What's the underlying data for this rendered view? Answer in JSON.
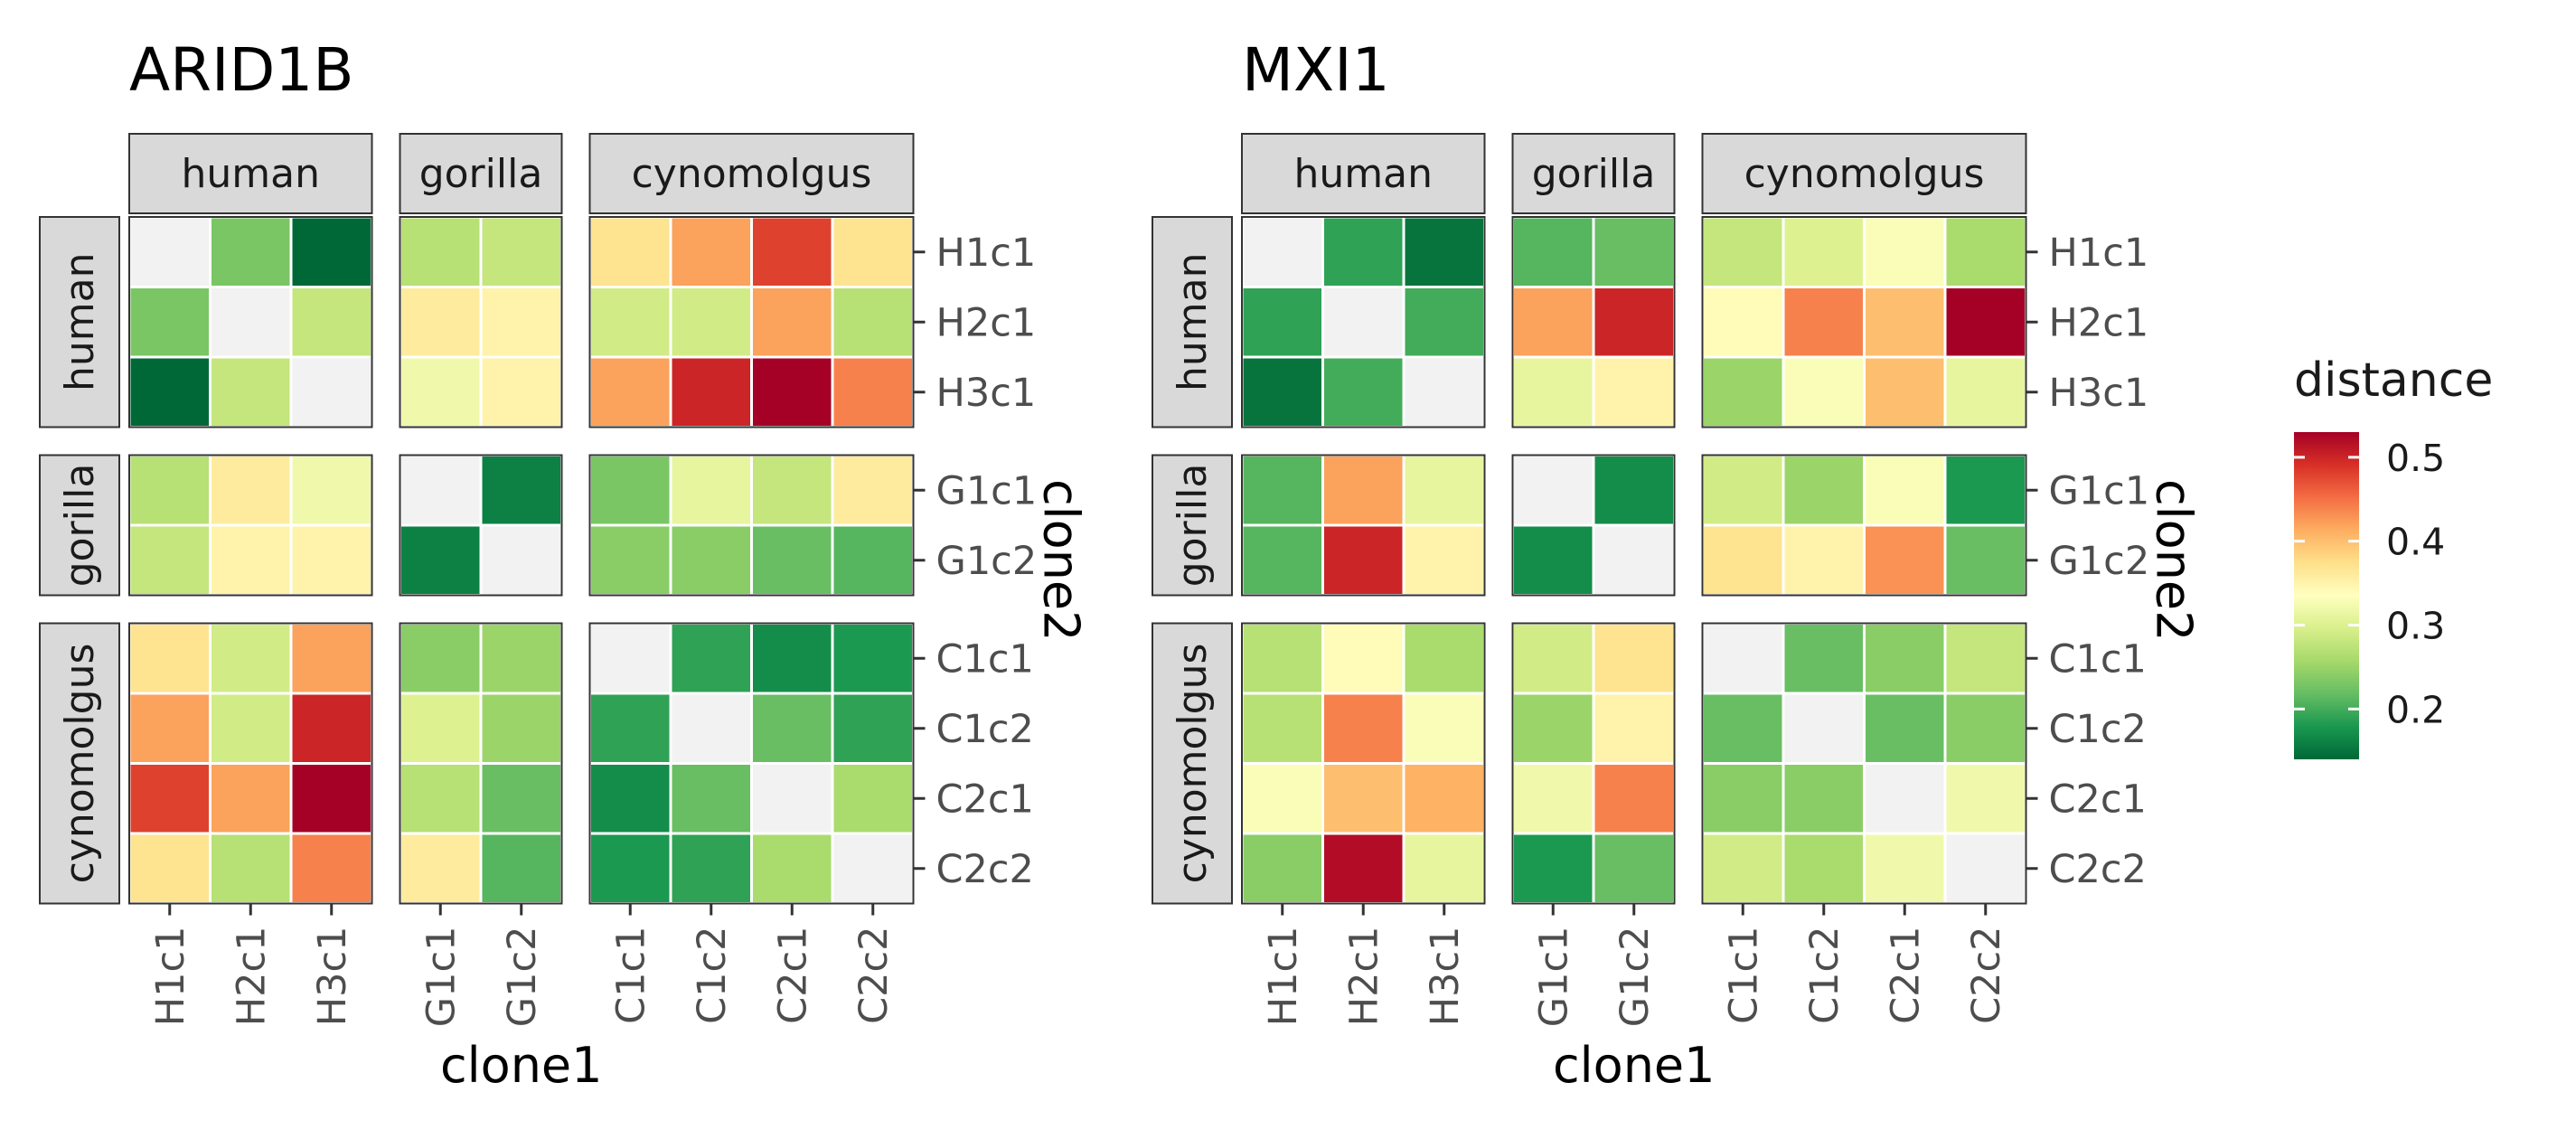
{
  "legend": {
    "title": "distance",
    "ticks": [
      "0.2",
      "0.3",
      "0.4",
      "0.5"
    ],
    "colors": [
      "#006837",
      "#1a9850",
      "#66bd63",
      "#a6d96a",
      "#d9ef8b",
      "#ffffbf",
      "#fee08b",
      "#fdae61",
      "#f46d43",
      "#d73027",
      "#a50026"
    ]
  },
  "chart_data": [
    {
      "type": "heatmap",
      "title": "ARID1B",
      "xlabel": "clone1",
      "ylabel": "clone2",
      "groups": [
        {
          "name": "human",
          "clones": [
            "H1c1",
            "H2c1",
            "H3c1"
          ]
        },
        {
          "name": "gorilla",
          "clones": [
            "G1c1",
            "G1c2"
          ]
        },
        {
          "name": "cynomolgus",
          "clones": [
            "C1c1",
            "C1c2",
            "C2c1",
            "C2c2"
          ]
        }
      ],
      "x": [
        "H1c1",
        "H2c1",
        "H3c1",
        "G1c1",
        "G1c2",
        "C1c1",
        "C1c2",
        "C2c1",
        "C2c2"
      ],
      "y": [
        "H1c1",
        "H2c1",
        "H3c1",
        "G1c1",
        "G1c2",
        "C1c1",
        "C1c2",
        "C2c1",
        "C2c2"
      ],
      "diagonal": "not shown",
      "values": [
        [
          null,
          0.23,
          0.14,
          0.27,
          0.28,
          0.37,
          0.42,
          0.48,
          0.37
        ],
        [
          0.23,
          null,
          0.28,
          0.36,
          0.35,
          0.29,
          0.29,
          0.42,
          0.27
        ],
        [
          0.14,
          0.28,
          null,
          0.32,
          0.35,
          0.42,
          0.5,
          0.53,
          0.44
        ],
        [
          0.27,
          0.36,
          0.32,
          null,
          0.16,
          0.23,
          0.31,
          0.28,
          0.36
        ],
        [
          0.28,
          0.35,
          0.35,
          0.16,
          null,
          0.24,
          0.24,
          0.22,
          0.21
        ],
        [
          0.37,
          0.29,
          0.42,
          0.24,
          0.25,
          null,
          0.19,
          0.17,
          0.18
        ],
        [
          0.42,
          0.29,
          0.5,
          0.3,
          0.25,
          0.19,
          null,
          0.22,
          0.19
        ],
        [
          0.48,
          0.42,
          0.53,
          0.27,
          0.22,
          0.17,
          0.22,
          null,
          0.26
        ],
        [
          0.37,
          0.27,
          0.44,
          0.36,
          0.21,
          0.18,
          0.19,
          0.26,
          null
        ]
      ]
    },
    {
      "type": "heatmap",
      "title": "MXI1",
      "xlabel": "clone1",
      "ylabel": "clone2",
      "groups": [
        {
          "name": "human",
          "clones": [
            "H1c1",
            "H2c1",
            "H3c1"
          ]
        },
        {
          "name": "gorilla",
          "clones": [
            "G1c1",
            "G1c2"
          ]
        },
        {
          "name": "cynomolgus",
          "clones": [
            "C1c1",
            "C1c2",
            "C2c1",
            "C2c2"
          ]
        }
      ],
      "x": [
        "H1c1",
        "H2c1",
        "H3c1",
        "G1c1",
        "G1c2",
        "C1c1",
        "C1c2",
        "C2c1",
        "C2c2"
      ],
      "y": [
        "H1c1",
        "H2c1",
        "H3c1",
        "G1c1",
        "G1c2",
        "C1c1",
        "C1c2",
        "C2c1",
        "C2c2"
      ],
      "diagonal": "not shown",
      "values": [
        [
          null,
          0.19,
          0.15,
          0.21,
          0.22,
          0.28,
          0.3,
          0.33,
          0.26
        ],
        [
          0.19,
          null,
          0.2,
          0.42,
          0.5,
          0.34,
          0.44,
          0.4,
          0.53
        ],
        [
          0.15,
          0.2,
          null,
          0.31,
          0.35,
          0.25,
          0.33,
          0.4,
          0.31
        ],
        [
          0.21,
          0.42,
          0.31,
          null,
          0.17,
          0.29,
          0.25,
          0.33,
          0.18
        ],
        [
          0.21,
          0.5,
          0.35,
          0.17,
          null,
          0.37,
          0.35,
          0.43,
          0.22
        ],
        [
          0.27,
          0.34,
          0.26,
          0.29,
          0.37,
          null,
          0.22,
          0.24,
          0.28
        ],
        [
          0.27,
          0.44,
          0.33,
          0.25,
          0.35,
          0.22,
          null,
          0.22,
          0.24
        ],
        [
          0.33,
          0.4,
          0.41,
          0.32,
          0.44,
          0.24,
          0.24,
          null,
          0.32
        ],
        [
          0.24,
          0.52,
          0.31,
          0.18,
          0.22,
          0.29,
          0.26,
          0.32,
          null
        ]
      ]
    }
  ]
}
